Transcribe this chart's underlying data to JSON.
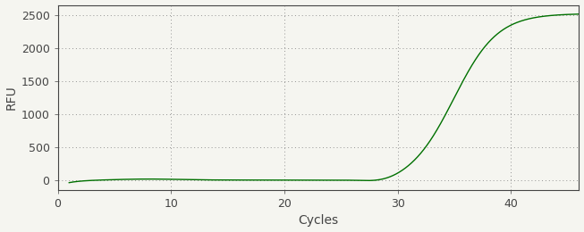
{
  "title": "",
  "xlabel": "Cycles",
  "ylabel": "RFU",
  "xlim": [
    0,
    46
  ],
  "ylim": [
    -150,
    2650
  ],
  "xticks": [
    0,
    10,
    20,
    30,
    40
  ],
  "yticks": [
    0,
    500,
    1000,
    1500,
    2000,
    2500
  ],
  "line_color": "#007000",
  "background_color": "#f5f5f0",
  "grid_color": "#888888",
  "sigmoid_L": 2520,
  "sigmoid_k": 0.52,
  "sigmoid_x0": 35.0,
  "x_start": 1,
  "x_end": 46,
  "axis_color": "#444444",
  "tick_color": "#444444",
  "label_fontsize": 10,
  "tick_fontsize": 9
}
